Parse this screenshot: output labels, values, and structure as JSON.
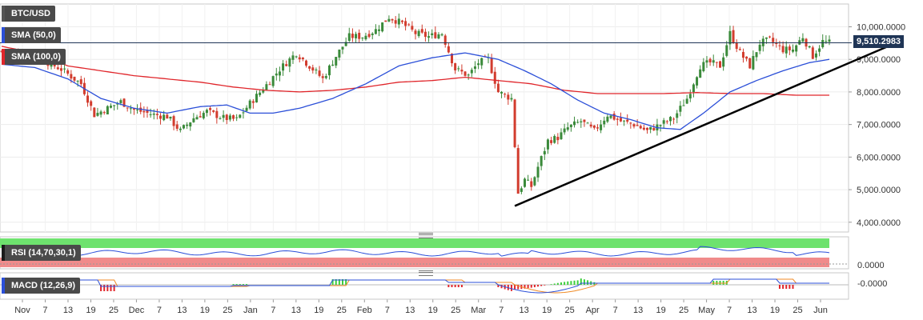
{
  "symbol": "BTC/USD",
  "indicators": {
    "sma50": {
      "label": "SMA (50,0)",
      "color": "#2b4fd8"
    },
    "sma100": {
      "label": "SMA (100,0)",
      "color": "#e0262b"
    },
    "rsi": {
      "label": "RSI (14,70,30,1)",
      "zero_label": "0.0000"
    },
    "macd": {
      "label": "MACD (12,26,9)",
      "zero_label": "-0.0000"
    }
  },
  "current_price": "9,510.2983",
  "colors": {
    "bull": "#3a8a3a",
    "bear": "#d23c2e",
    "trendline": "#000000",
    "price_tag": "#1f3556"
  },
  "chart_data": {
    "type": "candlestick",
    "y_ticks": [
      "4,000.0000",
      "5,000.0000",
      "6,000.0000",
      "7,000.0000",
      "8,000.0000",
      "9,000.0000",
      "10,000.0000"
    ],
    "y_range": [
      3700,
      10700
    ],
    "x_ticks": [
      "Nov",
      "7",
      "13",
      "19",
      "25",
      "Dec",
      "7",
      "13",
      "19",
      "25",
      "Jan",
      "7",
      "13",
      "19",
      "25",
      "Feb",
      "7",
      "13",
      "19",
      "25",
      "Mar",
      "7",
      "13",
      "19",
      "25",
      "Apr",
      "7",
      "13",
      "19",
      "25",
      "May",
      "7",
      "13",
      "19",
      "25",
      "Jun"
    ],
    "close_path": [
      [
        0,
        9250
      ],
      [
        6,
        9150
      ],
      [
        12,
        9000
      ],
      [
        18,
        8700
      ],
      [
        24,
        8250
      ],
      [
        28,
        7300
      ],
      [
        32,
        7500
      ],
      [
        36,
        7700
      ],
      [
        40,
        7450
      ],
      [
        46,
        7300
      ],
      [
        50,
        7250
      ],
      [
        54,
        6800
      ],
      [
        58,
        7200
      ],
      [
        62,
        7400
      ],
      [
        67,
        7200
      ],
      [
        71,
        7150
      ],
      [
        75,
        7650
      ],
      [
        79,
        8100
      ],
      [
        84,
        8700
      ],
      [
        89,
        9200
      ],
      [
        93,
        8800
      ],
      [
        97,
        8400
      ],
      [
        101,
        9100
      ],
      [
        105,
        9700
      ],
      [
        109,
        9700
      ],
      [
        113,
        9900
      ],
      [
        117,
        10300
      ],
      [
        121,
        10100
      ],
      [
        125,
        9800
      ],
      [
        129,
        9700
      ],
      [
        133,
        9800
      ],
      [
        137,
        8700
      ],
      [
        141,
        8500
      ],
      [
        144,
        8900
      ],
      [
        147,
        9000
      ],
      [
        150,
        8000
      ],
      [
        154,
        7800
      ],
      [
        156,
        4900
      ],
      [
        158,
        5300
      ],
      [
        160,
        5100
      ],
      [
        162,
        5700
      ],
      [
        165,
        6500
      ],
      [
        168,
        6600
      ],
      [
        171,
        6900
      ],
      [
        175,
        7100
      ],
      [
        179,
        6800
      ],
      [
        183,
        7300
      ],
      [
        187,
        7100
      ],
      [
        191,
        7000
      ],
      [
        195,
        6800
      ],
      [
        199,
        7000
      ],
      [
        203,
        7200
      ],
      [
        207,
        7800
      ],
      [
        211,
        8800
      ],
      [
        214,
        8900
      ],
      [
        217,
        8800
      ],
      [
        220,
        9800
      ],
      [
        223,
        9200
      ],
      [
        226,
        8800
      ],
      [
        229,
        9500
      ],
      [
        232,
        9600
      ],
      [
        236,
        9300
      ],
      [
        239,
        9300
      ],
      [
        242,
        9700
      ],
      [
        245,
        9100
      ],
      [
        248,
        9550
      ],
      [
        250,
        9510
      ]
    ],
    "sma50": [
      [
        0,
        8850
      ],
      [
        10,
        8750
      ],
      [
        20,
        8400
      ],
      [
        30,
        7800
      ],
      [
        40,
        7500
      ],
      [
        50,
        7350
      ],
      [
        60,
        7550
      ],
      [
        68,
        7600
      ],
      [
        75,
        7350
      ],
      [
        82,
        7350
      ],
      [
        90,
        7500
      ],
      [
        100,
        7800
      ],
      [
        110,
        8250
      ],
      [
        120,
        8800
      ],
      [
        130,
        9050
      ],
      [
        140,
        9200
      ],
      [
        150,
        9000
      ],
      [
        158,
        8650
      ],
      [
        166,
        8250
      ],
      [
        174,
        7750
      ],
      [
        182,
        7350
      ],
      [
        190,
        7150
      ],
      [
        198,
        6900
      ],
      [
        205,
        6850
      ],
      [
        212,
        7350
      ],
      [
        220,
        8000
      ],
      [
        228,
        8350
      ],
      [
        236,
        8650
      ],
      [
        244,
        8900
      ],
      [
        250,
        9000
      ]
    ],
    "sma100": [
      [
        0,
        9400
      ],
      [
        10,
        9200
      ],
      [
        20,
        8800
      ],
      [
        30,
        8650
      ],
      [
        40,
        8500
      ],
      [
        50,
        8400
      ],
      [
        60,
        8300
      ],
      [
        70,
        8150
      ],
      [
        80,
        8050
      ],
      [
        90,
        8000
      ],
      [
        100,
        8050
      ],
      [
        110,
        8150
      ],
      [
        120,
        8300
      ],
      [
        130,
        8350
      ],
      [
        140,
        8450
      ],
      [
        150,
        8350
      ],
      [
        160,
        8250
      ],
      [
        170,
        8050
      ],
      [
        180,
        7950
      ],
      [
        190,
        7950
      ],
      [
        200,
        7950
      ],
      [
        210,
        7980
      ],
      [
        220,
        7950
      ],
      [
        230,
        7950
      ],
      [
        240,
        7900
      ],
      [
        250,
        7900
      ]
    ],
    "trendline": [
      [
        155,
        4500
      ],
      [
        270,
        9500
      ]
    ],
    "last_price": 9510.2983
  }
}
